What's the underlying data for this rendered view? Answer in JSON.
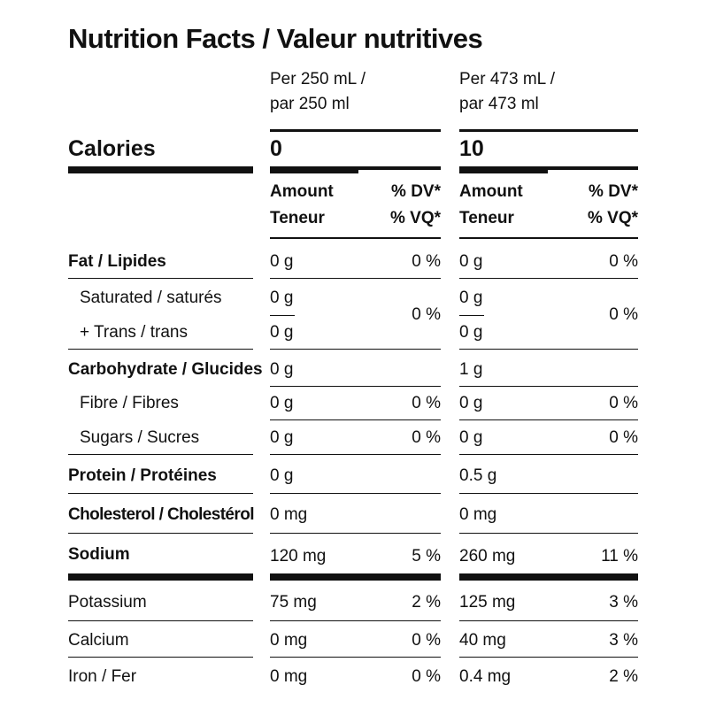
{
  "title": "Nutrition Facts / Valeur nutritives",
  "columns": [
    {
      "serving_line1": "Per 250 mL /",
      "serving_line2": "par 250 ml",
      "calories": "0",
      "amount_line1": "Amount",
      "amount_line2": "Teneur",
      "dv_line1": "% DV*",
      "dv_line2": "% VQ*"
    },
    {
      "serving_line1": "Per 473 mL /",
      "serving_line2": "par 473 ml",
      "calories": "10",
      "amount_line1": "Amount",
      "amount_line2": "Teneur",
      "dv_line1": "% DV*",
      "dv_line2": "% VQ*"
    }
  ],
  "calories_label": "Calories",
  "nutrients": {
    "fat": {
      "label": "Fat / Lipides",
      "c1_amount": "0 g",
      "c1_dv": "0 %",
      "c2_amount": "0 g",
      "c2_dv": "0 %"
    },
    "saturated": {
      "label": "Saturated / saturés",
      "c1_amount": "0 g",
      "c2_amount": "0 g"
    },
    "trans": {
      "label": "+ Trans / trans",
      "c1_amount": "0 g",
      "c2_amount": "0 g"
    },
    "sat_trans_dv": {
      "c1": "0 %",
      "c2": "0 %"
    },
    "carb": {
      "label": "Carbohydrate / Glucides",
      "c1_amount": "0 g",
      "c2_amount": "1 g"
    },
    "fibre": {
      "label": "Fibre / Fibres",
      "c1_amount": "0 g",
      "c1_dv": "0 %",
      "c2_amount": "0 g",
      "c2_dv": "0 %"
    },
    "sugars": {
      "label": "Sugars / Sucres",
      "c1_amount": "0 g",
      "c1_dv": "0 %",
      "c2_amount": "0 g",
      "c2_dv": "0 %"
    },
    "protein": {
      "label": "Protein / Protéines",
      "c1_amount": "0 g",
      "c2_amount": "0.5 g"
    },
    "cholesterol": {
      "label": "Cholesterol / Cholestérol",
      "c1_amount": "0 mg",
      "c2_amount": "0 mg"
    },
    "sodium": {
      "label": "Sodium",
      "c1_amount": "120 mg",
      "c1_dv": "5 %",
      "c2_amount": "260 mg",
      "c2_dv": "11 %"
    },
    "potassium": {
      "label": "Potassium",
      "c1_amount": "75 mg",
      "c1_dv": "2 %",
      "c2_amount": "125 mg",
      "c2_dv": "3 %"
    },
    "calcium": {
      "label": "Calcium",
      "c1_amount": "0 mg",
      "c1_dv": "0 %",
      "c2_amount": "40 mg",
      "c2_dv": "3 %"
    },
    "iron": {
      "label": "Iron / Fer",
      "c1_amount": "0 mg",
      "c1_dv": "0 %",
      "c2_amount": "0.4 mg",
      "c2_dv": "2 %"
    }
  }
}
